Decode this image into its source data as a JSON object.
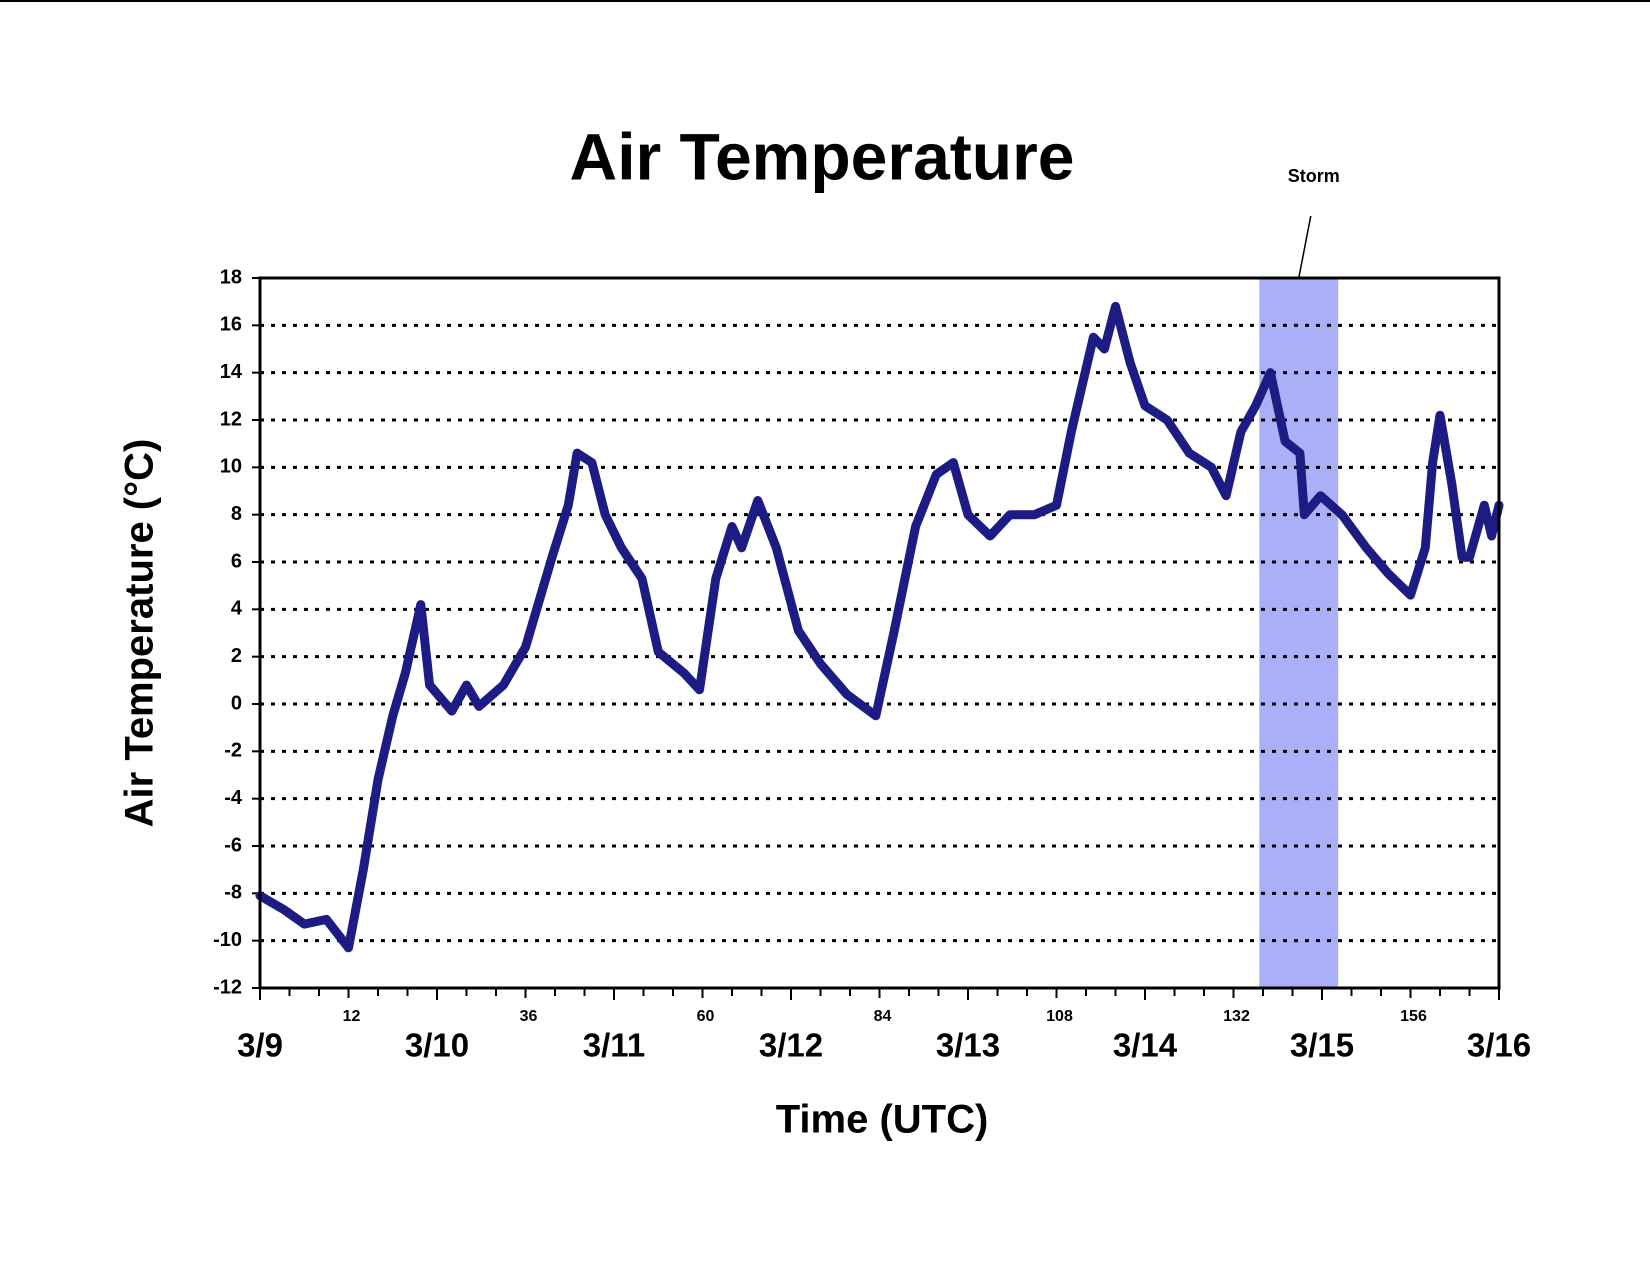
{
  "chart_data": {
    "type": "line",
    "title": "Air Temperature",
    "xlabel": "Time (UTC)",
    "ylabel": "Air Temperature (°C)",
    "x": [
      0,
      3.3,
      6,
      9,
      12,
      14,
      16,
      18,
      19.7,
      21.8,
      23,
      26,
      28,
      29.7,
      33,
      36,
      39.6,
      41.8,
      43,
      45,
      46.8,
      49,
      51.8,
      54,
      57.5,
      59.6,
      61.8,
      64,
      65.3,
      67.5,
      70,
      73,
      76,
      79.6,
      83.5,
      86,
      88.9,
      91.7,
      94,
      96,
      99,
      101.7,
      105,
      108,
      110,
      113,
      114.5,
      116,
      118,
      120,
      123,
      126,
      129,
      131,
      133,
      135,
      137,
      139,
      141,
      141.6,
      143.8,
      146.7,
      150,
      153,
      156,
      158,
      159,
      160,
      161.6,
      163,
      164,
      166,
      167,
      168
    ],
    "series": [
      {
        "name": "Air Temperature",
        "color": "#1c1c84",
        "values": [
          -8.1,
          -8.7,
          -9.3,
          -9.1,
          -10.3,
          -7,
          -3.2,
          -0.5,
          1.3,
          4.2,
          0.8,
          -0.3,
          0.8,
          -0.1,
          0.8,
          2.4,
          6.2,
          8.4,
          10.6,
          10.2,
          8,
          6.6,
          5.3,
          2.2,
          1.3,
          0.6,
          5.3,
          7.5,
          6.6,
          8.6,
          6.6,
          3.1,
          1.7,
          0.4,
          -0.5,
          3.1,
          7.5,
          9.7,
          10.2,
          8,
          7.1,
          8,
          8,
          8.4,
          11.5,
          15.5,
          15,
          16.8,
          14.4,
          12.6,
          12,
          10.6,
          10,
          8.8,
          11.5,
          12.6,
          14,
          11.1,
          10.6,
          8,
          8.8,
          8,
          6.6,
          5.5,
          4.6,
          6.6,
          10.2,
          12.2,
          9.3,
          6.2,
          6.2,
          8.4,
          7.1,
          8.4
        ]
      }
    ],
    "xlim": [
      0,
      168
    ],
    "xticks": [
      {
        "value": 0,
        "label": "3/9"
      },
      {
        "value": 24,
        "label": "3/10"
      },
      {
        "value": 48,
        "label": "3/11"
      },
      {
        "value": 72,
        "label": "3/12"
      },
      {
        "value": 96,
        "label": "3/13"
      },
      {
        "value": 120,
        "label": "3/14"
      },
      {
        "value": 144,
        "label": "3/15"
      },
      {
        "value": 168,
        "label": "3/16"
      }
    ],
    "x_hour_ticks": [
      12,
      36,
      60,
      84,
      108,
      132,
      156
    ],
    "x_minor_ticks": [
      4,
      8,
      16,
      20,
      28,
      32,
      40,
      44,
      52,
      56,
      64,
      68,
      76,
      80,
      88,
      92,
      100,
      104,
      112,
      116,
      124,
      128,
      136,
      140,
      148,
      152,
      160,
      164
    ],
    "ylim": [
      -12,
      18
    ],
    "yticks": [
      -12,
      -10,
      -8,
      -6,
      -4,
      -2,
      0,
      2,
      4,
      6,
      8,
      10,
      12,
      14,
      16,
      18
    ],
    "grid": true,
    "shaded_region": {
      "label": "Storm",
      "x": [
        135.5,
        146.2
      ],
      "color": "#aab0f8"
    }
  }
}
